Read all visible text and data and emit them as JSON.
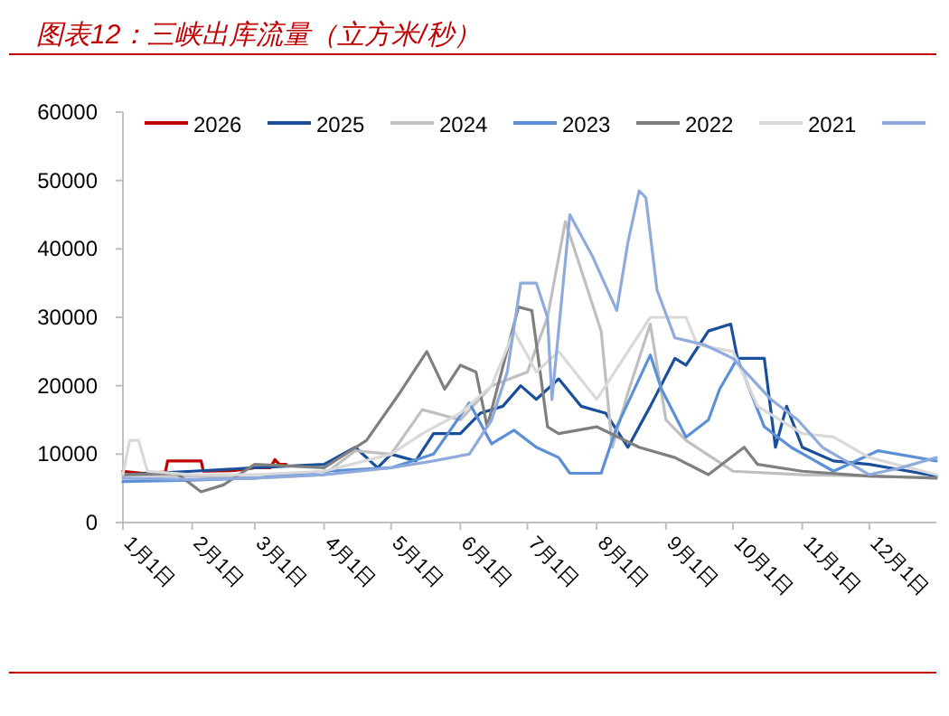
{
  "chart_data": {
    "type": "line",
    "title": "图表12：三峡出库流量（立方米/秒）",
    "xlim": [
      "--01-01",
      "--12-31"
    ],
    "xticks": [
      {
        "value": "--01-01",
        "label": "1月1日"
      },
      {
        "value": "--02-01",
        "label": "2月1日"
      },
      {
        "value": "--03-01",
        "label": "3月1日"
      },
      {
        "value": "--04-01",
        "label": "4月1日"
      },
      {
        "value": "--05-01",
        "label": "5月1日"
      },
      {
        "value": "--06-01",
        "label": "6月1日"
      },
      {
        "value": "--07-01",
        "label": "7月1日"
      },
      {
        "value": "--08-01",
        "label": "8月1日"
      },
      {
        "value": "--09-01",
        "label": "9月1日"
      },
      {
        "value": "--10-01",
        "label": "10月1日"
      },
      {
        "value": "--11-01",
        "label": "11月1日"
      },
      {
        "value": "--12-01",
        "label": "12月1日"
      }
    ],
    "ylim": [
      0,
      60000
    ],
    "yticks": [
      0,
      10000,
      20000,
      30000,
      40000,
      50000,
      60000
    ],
    "grid": false,
    "legend": "top",
    "line_style": "solid",
    "marker": "none",
    "series": [
      {
        "name": "2026",
        "color": "#c00000",
        "x": [
          "--01-01",
          "--01-10",
          "--01-20",
          "--01-21",
          "--02-05",
          "--02-06",
          "--02-20",
          "--03-01",
          "--03-08",
          "--03-10",
          "--03-12",
          "--03-15"
        ],
        "values": [
          7500,
          7200,
          7400,
          9000,
          9000,
          7500,
          7600,
          8000,
          8000,
          9200,
          8500,
          8500
        ]
      },
      {
        "name": "2025",
        "color": "#1a4f9c",
        "x": [
          "--01-01",
          "--02-01",
          "--03-01",
          "--04-01",
          "--04-15",
          "--04-25",
          "--05-01",
          "--05-12",
          "--05-20",
          "--06-01",
          "--06-10",
          "--06-20",
          "--06-28",
          "--07-05",
          "--07-15",
          "--07-25",
          "--08-05",
          "--08-15",
          "--08-25",
          "--09-05",
          "--09-10",
          "--09-20",
          "--09-30",
          "--10-03",
          "--10-15",
          "--10-20",
          "--10-25",
          "--11-01",
          "--11-15",
          "--12-01",
          "--12-10",
          "--12-31"
        ],
        "values": [
          7000,
          7500,
          8000,
          8500,
          11000,
          8000,
          10000,
          9000,
          13000,
          13000,
          16000,
          17000,
          20000,
          18000,
          21000,
          17000,
          16000,
          11000,
          17000,
          24000,
          23000,
          28000,
          29000,
          24000,
          24000,
          11000,
          17000,
          11000,
          9000,
          8500,
          8000,
          6800
        ]
      },
      {
        "name": "2024",
        "color": "#bfbfbf",
        "x": [
          "--01-01",
          "--02-01",
          "--03-01",
          "--04-01",
          "--04-15",
          "--05-01",
          "--05-15",
          "--06-01",
          "--06-15",
          "--07-01",
          "--07-10",
          "--07-18",
          "--07-28",
          "--08-03",
          "--08-08",
          "--08-15",
          "--08-25",
          "--09-01",
          "--09-10",
          "--10-01",
          "--11-01",
          "--12-01",
          "--12-31"
        ],
        "values": [
          7000,
          6800,
          6500,
          7000,
          10500,
          10000,
          16500,
          15000,
          20000,
          22000,
          30000,
          44000,
          34000,
          28000,
          11000,
          19000,
          29000,
          15000,
          12000,
          7500,
          7000,
          6800,
          6500
        ]
      },
      {
        "name": "2023",
        "color": "#5b8fd6",
        "x": [
          "--01-01",
          "--02-01",
          "--03-01",
          "--04-01",
          "--05-01",
          "--05-20",
          "--06-05",
          "--06-15",
          "--06-25",
          "--07-05",
          "--07-15",
          "--07-20",
          "--08-03",
          "--08-10",
          "--08-25",
          "--08-30",
          "--09-10",
          "--09-20",
          "--09-25",
          "--10-03",
          "--10-15",
          "--10-27",
          "--11-15",
          "--12-05",
          "--12-31"
        ],
        "values": [
          6000,
          6200,
          6500,
          7500,
          8000,
          10000,
          17500,
          11500,
          13500,
          11000,
          9500,
          7200,
          7200,
          14000,
          24500,
          19500,
          12500,
          15000,
          19500,
          24000,
          14000,
          11000,
          7500,
          10500,
          9000
        ]
      },
      {
        "name": "2022",
        "color": "#7f7f7f",
        "x": [
          "--01-01",
          "--01-25",
          "--02-05",
          "--02-15",
          "--03-01",
          "--04-01",
          "--04-20",
          "--05-05",
          "--05-17",
          "--05-25",
          "--06-01",
          "--06-08",
          "--06-13",
          "--06-27",
          "--07-03",
          "--07-10",
          "--07-15",
          "--08-01",
          "--08-20",
          "--09-05",
          "--09-20",
          "--10-06",
          "--10-12",
          "--11-01",
          "--12-01",
          "--12-31"
        ],
        "values": [
          7000,
          7200,
          4500,
          5500,
          8500,
          8000,
          12000,
          19000,
          25000,
          19500,
          23000,
          22000,
          14000,
          31500,
          31000,
          14000,
          13000,
          14000,
          11000,
          9500,
          7000,
          11000,
          8500,
          7500,
          6800,
          6500
        ]
      },
      {
        "name": "2021",
        "color": "#d9d9d9",
        "x": [
          "--01-01",
          "--01-04",
          "--01-08",
          "--01-12",
          "--02-01",
          "--03-01",
          "--04-01",
          "--05-01",
          "--05-15",
          "--06-01",
          "--06-15",
          "--06-25",
          "--07-05",
          "--07-15",
          "--08-01",
          "--08-25",
          "--09-10",
          "--09-15",
          "--10-01",
          "--10-12",
          "--11-01",
          "--11-15",
          "--12-01",
          "--12-31"
        ],
        "values": [
          7000,
          12000,
          12000,
          7500,
          7000,
          7000,
          7500,
          10000,
          13000,
          16000,
          20000,
          28000,
          22000,
          25000,
          18000,
          30000,
          30000,
          26000,
          25000,
          17000,
          13000,
          12500,
          9500,
          7000
        ]
      },
      {
        "color": "#8faadc",
        "x": [
          "--01-01",
          "--02-01",
          "--03-01",
          "--04-01",
          "--05-01",
          "--05-20",
          "--06-05",
          "--06-15",
          "--06-22",
          "--06-28",
          "--07-05",
          "--07-10",
          "--07-12",
          "--07-20",
          "--07-25",
          "--07-30",
          "--08-10",
          "--08-15",
          "--08-20",
          "--08-23",
          "--08-28",
          "--09-05",
          "--09-18",
          "--10-01",
          "--10-18",
          "--10-30",
          "--11-10",
          "--12-01",
          "--12-15",
          "--12-31"
        ],
        "values": [
          6500,
          6300,
          6500,
          7000,
          8000,
          9000,
          10000,
          15000,
          22000,
          35000,
          35000,
          30000,
          18000,
          45000,
          42000,
          39000,
          31000,
          41000,
          48500,
          47500,
          34000,
          27000,
          26000,
          24000,
          18000,
          15000,
          11000,
          7000,
          8000,
          9500
        ]
      }
    ]
  }
}
